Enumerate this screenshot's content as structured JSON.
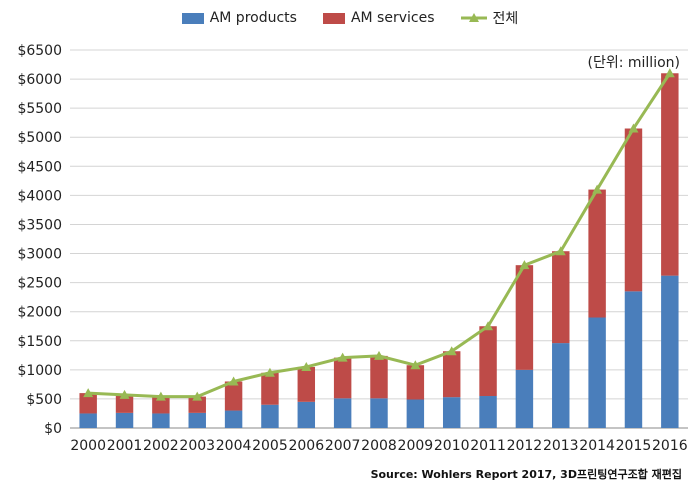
{
  "legend": {
    "products": "AM products",
    "services": "AM services",
    "total": "전체"
  },
  "unit_label": "(단위: million)",
  "source": "Source: Wohlers Report 2017, 3D프린팅연구조합 재편집",
  "colors": {
    "products": "#4a7ebb",
    "services": "#be4b48",
    "total": "#98b954"
  },
  "chart_data": {
    "type": "bar",
    "stacked": true,
    "categories": [
      "2000",
      "2001",
      "2002",
      "2003",
      "2004",
      "2005",
      "2006",
      "2007",
      "2008",
      "2009",
      "2010",
      "2011",
      "2012",
      "2013",
      "2014",
      "2015",
      "2016"
    ],
    "series": [
      {
        "name": "AM products",
        "values": [
          250,
          260,
          250,
          260,
          300,
          400,
          450,
          510,
          510,
          490,
          530,
          550,
          1000,
          1460,
          1900,
          2350,
          2620
        ]
      },
      {
        "name": "AM services",
        "values": [
          350,
          310,
          290,
          280,
          500,
          550,
          600,
          700,
          730,
          590,
          790,
          1200,
          1800,
          1580,
          2200,
          2800,
          3480
        ]
      },
      {
        "name": "전체",
        "type": "line",
        "values": [
          600,
          570,
          540,
          540,
          800,
          950,
          1050,
          1210,
          1240,
          1080,
          1320,
          1750,
          2800,
          3040,
          4100,
          5150,
          6100
        ]
      }
    ],
    "ylim": [
      0,
      6500
    ],
    "yticks": [
      "$0",
      "$500",
      "$1000",
      "$1500",
      "$2000",
      "$2500",
      "$3000",
      "$3500",
      "$4000",
      "$4500",
      "$5000",
      "$5500",
      "$6000",
      "$6500"
    ],
    "ytick_values": [
      0,
      500,
      1000,
      1500,
      2000,
      2500,
      3000,
      3500,
      4000,
      4500,
      5000,
      5500,
      6000,
      6500
    ],
    "grid": true,
    "legend_position": "top"
  }
}
